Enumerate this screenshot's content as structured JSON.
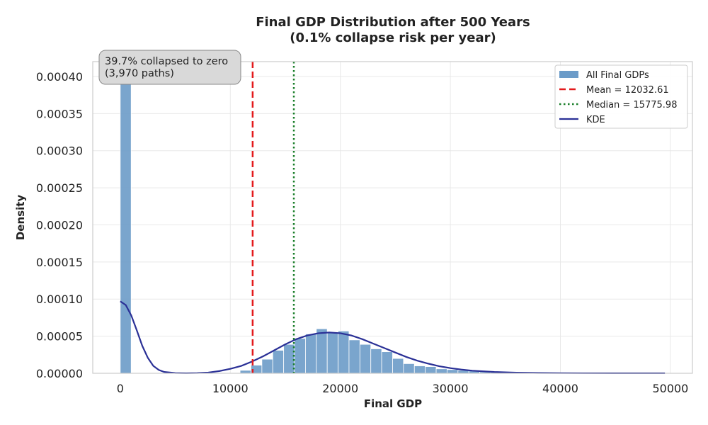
{
  "chart_data": {
    "type": "bar",
    "title_line1": "Final GDP Distribution after 500 Years",
    "title_line2": "(0.1% collapse risk per year)",
    "xlabel": "Final GDP",
    "ylabel": "Density",
    "xlim": [
      -2500,
      52000
    ],
    "ylim": [
      0,
      0.00042
    ],
    "xticks": [
      0,
      10000,
      20000,
      30000,
      40000,
      50000
    ],
    "xtick_labels": [
      "0",
      "10000",
      "20000",
      "30000",
      "40000",
      "50000"
    ],
    "yticks": [
      0,
      5e-05,
      0.0001,
      0.00015,
      0.0002,
      0.00025,
      0.0003,
      0.00035,
      0.0004
    ],
    "ytick_labels": [
      "0.00000",
      "0.00005",
      "0.00010",
      "0.00015",
      "0.00020",
      "0.00025",
      "0.00030",
      "0.00035",
      "0.00040"
    ],
    "grid": true,
    "legend_position": "top-right",
    "colors": {
      "histogram": "#6b9bc8",
      "mean": "#e31a1c",
      "median": "#1a7f2a",
      "kde": "#2a3096"
    },
    "histogram": {
      "name": "All Final GDPs",
      "bin_width": 990,
      "bins": [
        {
          "x0": 0,
          "value": 0.00042
        },
        {
          "x0": 10890,
          "value": 4e-06
        },
        {
          "x0": 11880,
          "value": 1.1e-05
        },
        {
          "x0": 12870,
          "value": 1.9e-05
        },
        {
          "x0": 13860,
          "value": 3.1e-05
        },
        {
          "x0": 14850,
          "value": 3.9e-05
        },
        {
          "x0": 15840,
          "value": 4.7e-05
        },
        {
          "x0": 16830,
          "value": 5.3e-05
        },
        {
          "x0": 17820,
          "value": 6e-05
        },
        {
          "x0": 18810,
          "value": 5.5e-05
        },
        {
          "x0": 19800,
          "value": 5.7e-05
        },
        {
          "x0": 20790,
          "value": 4.5e-05
        },
        {
          "x0": 21780,
          "value": 3.9e-05
        },
        {
          "x0": 22770,
          "value": 3.3e-05
        },
        {
          "x0": 23760,
          "value": 2.9e-05
        },
        {
          "x0": 24750,
          "value": 2e-05
        },
        {
          "x0": 25740,
          "value": 1.3e-05
        },
        {
          "x0": 26730,
          "value": 1e-05
        },
        {
          "x0": 27720,
          "value": 9e-06
        },
        {
          "x0": 28710,
          "value": 6e-06
        },
        {
          "x0": 29700,
          "value": 5e-06
        },
        {
          "x0": 30690,
          "value": 4e-06
        },
        {
          "x0": 31680,
          "value": 4e-06
        },
        {
          "x0": 32670,
          "value": 2e-06
        },
        {
          "x0": 33660,
          "value": 2e-06
        },
        {
          "x0": 34650,
          "value": 1e-06
        },
        {
          "x0": 35640,
          "value": 1e-06
        },
        {
          "x0": 36630,
          "value": 1e-06
        },
        {
          "x0": 37620,
          "value": 7e-07
        },
        {
          "x0": 38610,
          "value": 5e-07
        }
      ]
    },
    "mean": {
      "label": "Mean = 12032.61",
      "value": 12032.61
    },
    "median": {
      "label": "Median = 15775.98",
      "value": 15775.98
    },
    "kde": {
      "name": "KDE",
      "x": [
        0,
        500,
        1000,
        1500,
        2000,
        2500,
        3000,
        3500,
        4000,
        5000,
        6000,
        7000,
        8000,
        9000,
        10000,
        11000,
        12000,
        13000,
        14000,
        15000,
        16000,
        17000,
        18000,
        19000,
        20000,
        21000,
        22000,
        23000,
        24000,
        25000,
        26000,
        27000,
        28000,
        29000,
        30000,
        31000,
        32000,
        34000,
        36000,
        38000,
        40000,
        42000,
        45000,
        49500
      ],
      "y": [
        9.7e-05,
        9.2e-05,
        7.8e-05,
        5.8e-05,
        3.7e-05,
        2.1e-05,
        1e-05,
        4.5e-06,
        1.8e-06,
        4e-07,
        2e-07,
        4e-07,
        1e-06,
        3e-06,
        6e-06,
        1e-05,
        1.6e-05,
        2.3e-05,
        3.1e-05,
        3.9e-05,
        4.6e-05,
        5.1e-05,
        5.4e-05,
        5.5e-05,
        5.4e-05,
        5.1e-05,
        4.6e-05,
        4e-05,
        3.4e-05,
        2.8e-05,
        2.2e-05,
        1.7e-05,
        1.3e-05,
        9.5e-06,
        7e-06,
        5e-06,
        3.5e-06,
        1.8e-06,
        9e-07,
        5e-07,
        3e-07,
        2e-07,
        1e-07,
        1e-07
      ]
    },
    "annotation": {
      "line1": "39.7% collapsed to zero",
      "line2": "(3,970 paths)"
    }
  }
}
